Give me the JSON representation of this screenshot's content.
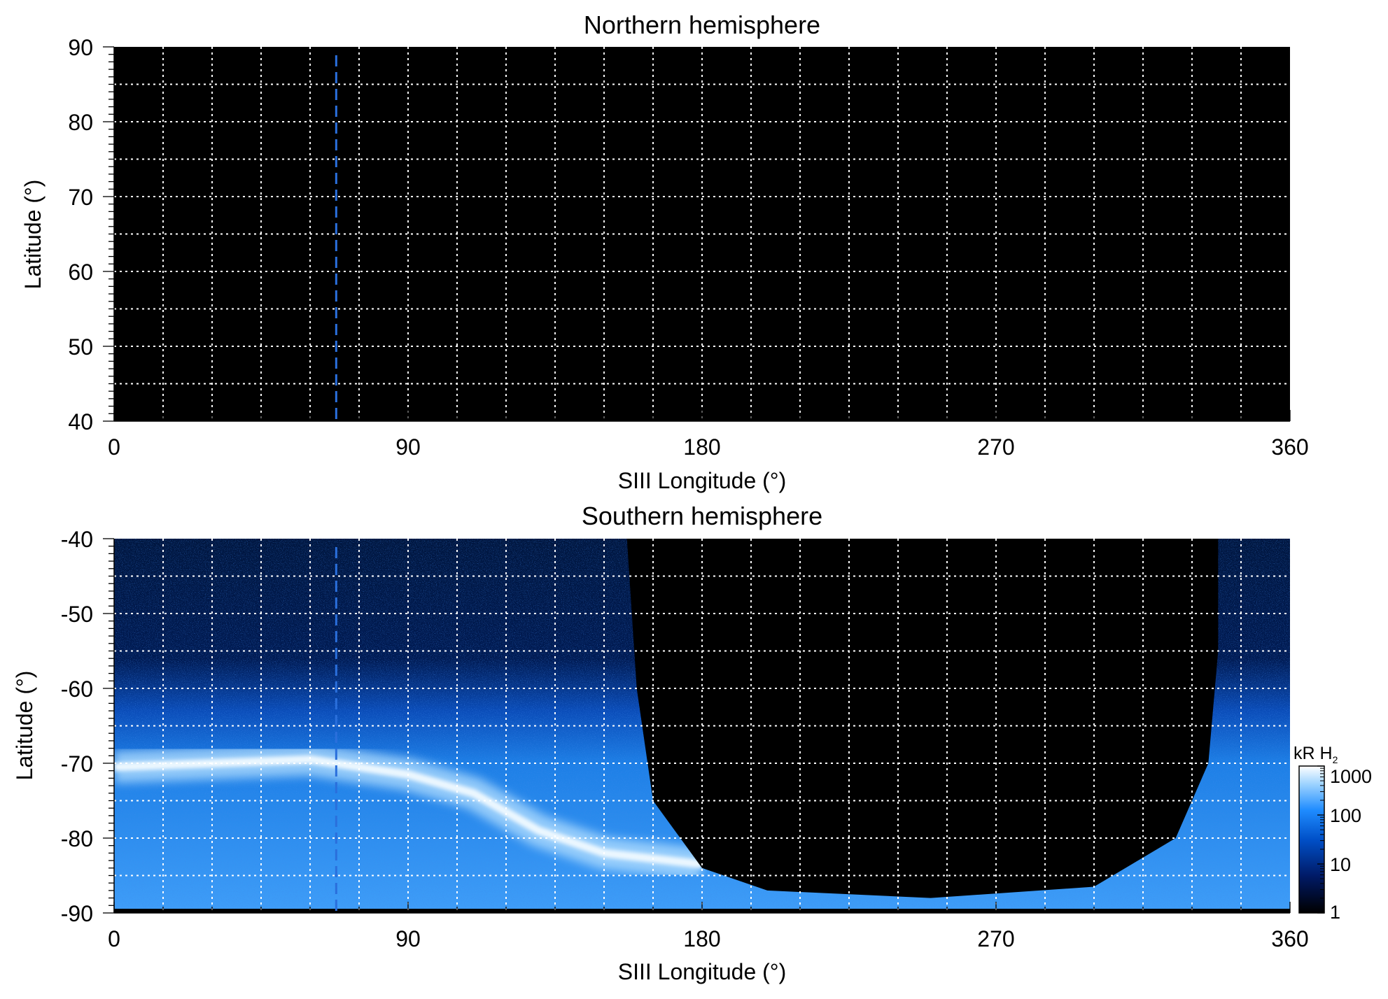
{
  "chart_data": [
    {
      "type": "heatmap",
      "title": "Northern hemisphere",
      "xlabel": "SIII Longitude (°)",
      "ylabel": "Latitude (°)",
      "xlim": [
        0,
        360
      ],
      "ylim": [
        40,
        90
      ],
      "x_ticks": [
        0,
        90,
        180,
        270,
        360
      ],
      "y_ticks": [
        40,
        50,
        60,
        70,
        80,
        90
      ],
      "grid": true,
      "grid_step_x": 15,
      "grid_step_y": 5,
      "marker_longitude": 68,
      "marker_color": "#2a6fdc",
      "background_color": "#000000",
      "emission": "none"
    },
    {
      "type": "heatmap",
      "title": "Southern hemisphere",
      "xlabel": "SIII Longitude (°)",
      "ylabel": "Latitude (°)",
      "xlim": [
        0,
        360
      ],
      "ylim": [
        -90,
        -40
      ],
      "x_ticks": [
        0,
        90,
        180,
        270,
        360
      ],
      "y_ticks": [
        -90,
        -80,
        -70,
        -60,
        -50,
        -40
      ],
      "grid": true,
      "grid_step_x": 15,
      "grid_step_y": 5,
      "marker_longitude": 68,
      "marker_color": "#2a6fdc",
      "main_oval_latitude": [
        {
          "lon": 0,
          "lat": -70.5
        },
        {
          "lon": 30,
          "lat": -70
        },
        {
          "lon": 60,
          "lat": -69.5
        },
        {
          "lon": 90,
          "lat": -71.5
        },
        {
          "lon": 110,
          "lat": -74
        },
        {
          "lon": 130,
          "lat": -79
        },
        {
          "lon": 150,
          "lat": -82
        },
        {
          "lon": 180,
          "lat": -83.5
        }
      ],
      "unobserved_boundary": [
        {
          "lon": 157,
          "lat": -40
        },
        {
          "lon": 160,
          "lat": -60
        },
        {
          "lon": 165,
          "lat": -75
        },
        {
          "lon": 180,
          "lat": -84
        },
        {
          "lon": 200,
          "lat": -87
        },
        {
          "lon": 250,
          "lat": -88
        },
        {
          "lon": 300,
          "lat": -86.5
        },
        {
          "lon": 325,
          "lat": -80
        },
        {
          "lon": 335,
          "lat": -70
        },
        {
          "lon": 338,
          "lat": -55
        },
        {
          "lon": 338,
          "lat": -40
        }
      ],
      "colorbar": {
        "label": "kR H",
        "label_subscript": "2",
        "ticks": [
          "1000",
          "100",
          "10",
          "1"
        ],
        "tick_values": [
          1000,
          100,
          10,
          1
        ],
        "scale": "log",
        "colors": [
          "#000000",
          "#001a66",
          "#0050c8",
          "#1f8cff",
          "#9fd4ff",
          "#ffffff"
        ]
      }
    }
  ]
}
